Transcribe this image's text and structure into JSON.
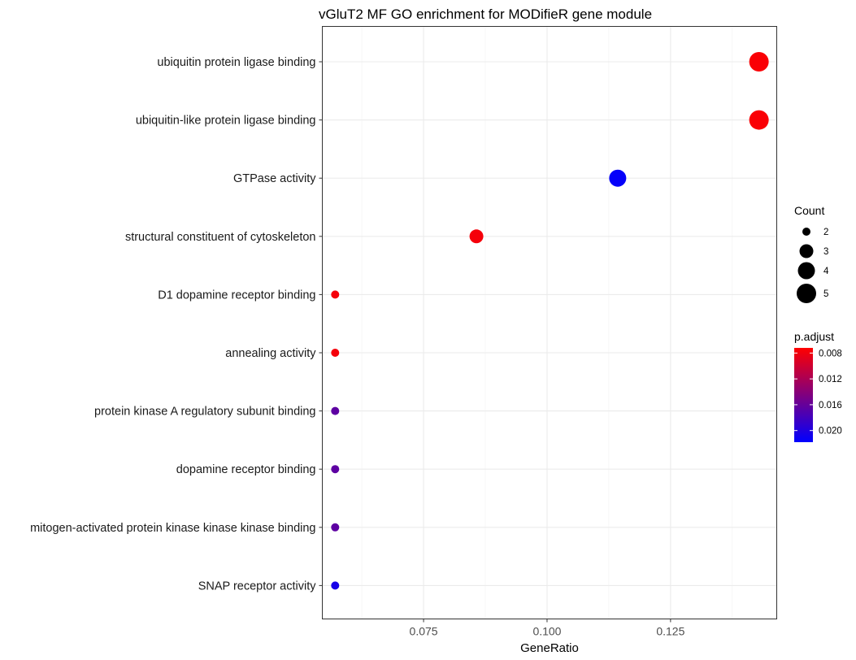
{
  "chart_data": {
    "type": "scatter",
    "title": "vGluT2 MF GO enrichment for MODifieR gene module",
    "xlabel": "GeneRatio",
    "ylabel": "",
    "xlim": [
      0.0545,
      0.1465
    ],
    "x_ticks": [
      "0.075",
      "0.100",
      "0.125"
    ],
    "x_tick_values": [
      0.075,
      0.1,
      0.125
    ],
    "grid": true,
    "categories": [
      "ubiquitin protein ligase binding",
      "ubiquitin-like protein ligase binding",
      "GTPase activity",
      "structural constituent of cytoskeleton",
      "D1 dopamine receptor binding",
      "annealing activity",
      "protein kinase A regulatory subunit binding",
      "dopamine receptor binding",
      "mitogen-activated protein kinase kinase kinase binding",
      "SNAP receptor activity"
    ],
    "gene_ratio": [
      0.1429,
      0.1429,
      0.1143,
      0.0857,
      0.0571,
      0.0571,
      0.0571,
      0.0571,
      0.0571,
      0.0571
    ],
    "count": [
      5,
      5,
      4,
      3,
      2,
      2,
      2,
      2,
      2,
      2
    ],
    "p_adjust": [
      0.0075,
      0.0075,
      0.0215,
      0.0078,
      0.0078,
      0.0078,
      0.0165,
      0.0165,
      0.0165,
      0.0205
    ],
    "size_legend": {
      "title": "Count",
      "placement": "right",
      "entries": [
        {
          "label": "2",
          "value": 2
        },
        {
          "label": "3",
          "value": 3
        },
        {
          "label": "4",
          "value": 4
        },
        {
          "label": "5",
          "value": 5
        }
      ]
    },
    "color_legend": {
      "title": "p.adjust",
      "placement": "right",
      "min": 0.0072,
      "max": 0.0218,
      "low_color": "#ff0000",
      "high_color": "#0000ff",
      "ticks": [
        {
          "label": "0.008",
          "value": 0.008
        },
        {
          "label": "0.012",
          "value": 0.012
        },
        {
          "label": "0.016",
          "value": 0.016
        },
        {
          "label": "0.020",
          "value": 0.02
        }
      ]
    }
  }
}
